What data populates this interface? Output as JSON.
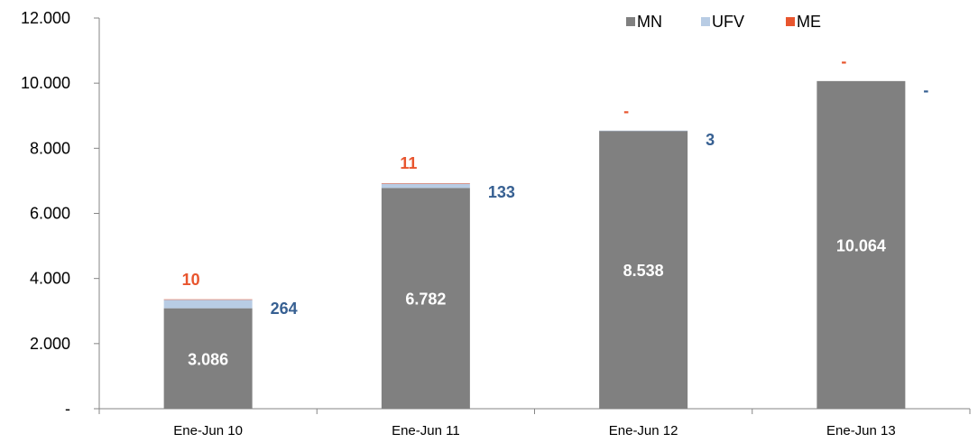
{
  "chart_data": {
    "type": "bar",
    "stacked": true,
    "categories": [
      "Ene-Jun 10",
      "Ene-Jun 11",
      "Ene-Jun 12",
      "Ene-Jun 13"
    ],
    "series": [
      {
        "name": "MN",
        "values": [
          3086,
          6782,
          8538,
          10064
        ],
        "color": "#808080",
        "labels": [
          "3.086",
          "6.782",
          "8.538",
          "10.064"
        ]
      },
      {
        "name": "UFV",
        "values": [
          264,
          133,
          3,
          0
        ],
        "color": "#b8cce4",
        "labels": [
          "264",
          "133",
          "3",
          "-"
        ],
        "label_color": "#376092"
      },
      {
        "name": "ME",
        "values": [
          10,
          11,
          0,
          0
        ],
        "color": "#e8552e",
        "labels": [
          "10",
          "11",
          "-",
          "-"
        ],
        "label_color": "#e8552e"
      }
    ],
    "ylim": [
      0,
      12000
    ],
    "yticks": [
      0,
      2000,
      4000,
      6000,
      8000,
      10000,
      12000
    ],
    "ytick_labels": [
      "-",
      "2.000",
      "4.000",
      "6.000",
      "8.000",
      "10.000",
      "12.000"
    ],
    "title": "",
    "xlabel": "",
    "ylabel": "",
    "grid": false,
    "legend_position": "top-right"
  }
}
